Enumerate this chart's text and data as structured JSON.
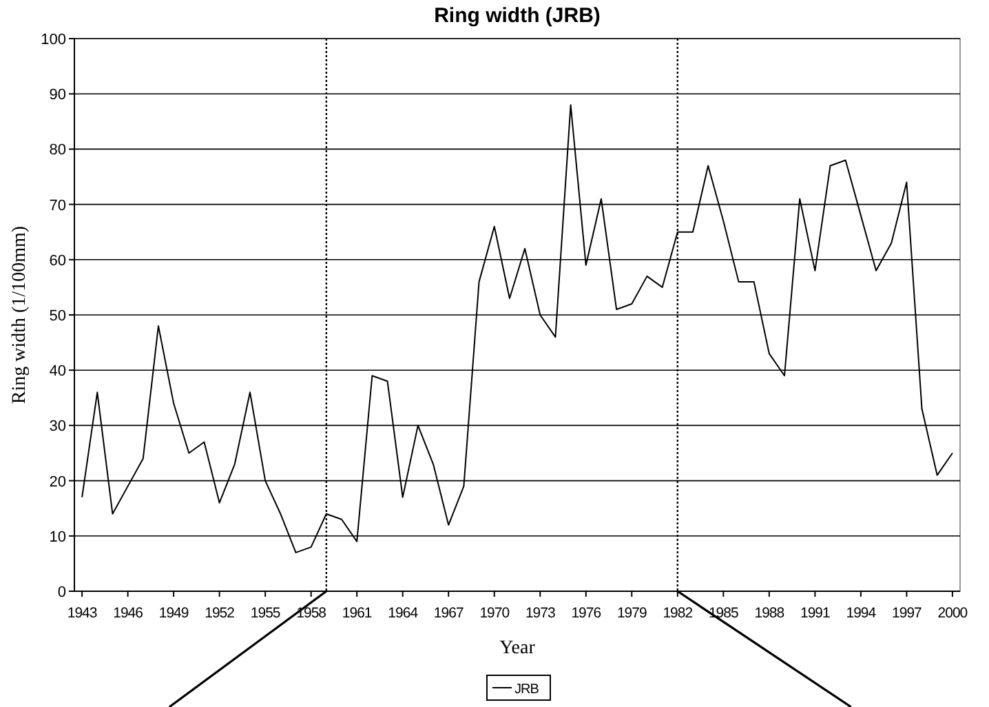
{
  "chart_data": {
    "type": "line",
    "title": "Ring width (JRB)",
    "xlabel": "Year",
    "ylabel": "Ring width (1/100mm)",
    "x": [
      1943,
      1944,
      1945,
      1946,
      1947,
      1948,
      1949,
      1950,
      1951,
      1952,
      1953,
      1954,
      1955,
      1956,
      1957,
      1958,
      1959,
      1960,
      1961,
      1962,
      1963,
      1964,
      1965,
      1966,
      1967,
      1968,
      1969,
      1970,
      1971,
      1972,
      1973,
      1974,
      1975,
      1976,
      1977,
      1978,
      1979,
      1980,
      1981,
      1982,
      1983,
      1984,
      1985,
      1986,
      1987,
      1988,
      1989,
      1990,
      1991,
      1992,
      1993,
      1994,
      1995,
      1996,
      1997,
      1998,
      1999,
      2000
    ],
    "series": [
      {
        "name": "JRB",
        "color": "#000000",
        "values": [
          17,
          36,
          14,
          19,
          24,
          48,
          34,
          25,
          27,
          16,
          23,
          36,
          20,
          14,
          7,
          8,
          14,
          13,
          9,
          39,
          38,
          17,
          30,
          23,
          12,
          19,
          56,
          66,
          53,
          62,
          50,
          46,
          88,
          59,
          71,
          51,
          52,
          57,
          55,
          65,
          65,
          77,
          67,
          56,
          56,
          43,
          39,
          71,
          58,
          77,
          78,
          68,
          58,
          63,
          74,
          33,
          21,
          25
        ]
      }
    ],
    "xlim": [
      1942.5,
      2000.5
    ],
    "xticks": [
      1943,
      1946,
      1949,
      1952,
      1955,
      1958,
      1961,
      1964,
      1967,
      1970,
      1973,
      1976,
      1979,
      1982,
      1985,
      1988,
      1991,
      1994,
      1997,
      2000
    ],
    "ylim": [
      0,
      100
    ],
    "yticks": [
      0,
      10,
      20,
      30,
      40,
      50,
      60,
      70,
      80,
      90,
      100
    ],
    "grid": "y",
    "legend": "bottom",
    "marker": "none",
    "line_style": "solid",
    "ref_lines": [
      {
        "axis": "x",
        "value": 1959,
        "line_style": "dotted",
        "color": "#000000"
      },
      {
        "axis": "x",
        "value": 1982,
        "line_style": "dotted",
        "color": "#000000"
      }
    ]
  }
}
